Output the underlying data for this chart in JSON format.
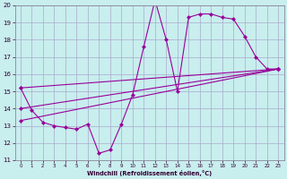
{
  "xlabel": "Windchill (Refroidissement éolien,°C)",
  "bg_color": "#c8eeee",
  "grid_color": "#aaaacc",
  "line_color": "#990099",
  "xlim": [
    -0.5,
    23.5
  ],
  "ylim": [
    11,
    20
  ],
  "yticks": [
    11,
    12,
    13,
    14,
    15,
    16,
    17,
    18,
    19,
    20
  ],
  "xticks": [
    0,
    1,
    2,
    3,
    4,
    5,
    6,
    7,
    8,
    9,
    10,
    11,
    12,
    13,
    14,
    15,
    16,
    17,
    18,
    19,
    20,
    21,
    22,
    23
  ],
  "zigzag_x": [
    0,
    1,
    2,
    3,
    4,
    5,
    6,
    7,
    8,
    9,
    10,
    11,
    12,
    13,
    14,
    15,
    16,
    17,
    18,
    19,
    20,
    21,
    22,
    23
  ],
  "zigzag_y": [
    15.2,
    13.9,
    13.2,
    13.0,
    12.9,
    12.8,
    13.1,
    11.4,
    11.6,
    13.1,
    14.8,
    17.6,
    20.3,
    18.0,
    15.0,
    19.3,
    19.5,
    19.5,
    19.3,
    19.2,
    18.2,
    17.0,
    16.3,
    16.3
  ],
  "trend1_x": [
    0,
    23
  ],
  "trend1_y": [
    15.2,
    16.3
  ],
  "trend2_x": [
    0,
    23
  ],
  "trend2_y": [
    14.0,
    16.3
  ],
  "trend3_x": [
    0,
    23
  ],
  "trend3_y": [
    13.3,
    16.3
  ],
  "marker": "D",
  "markersize": 2.2,
  "linewidth": 0.8
}
